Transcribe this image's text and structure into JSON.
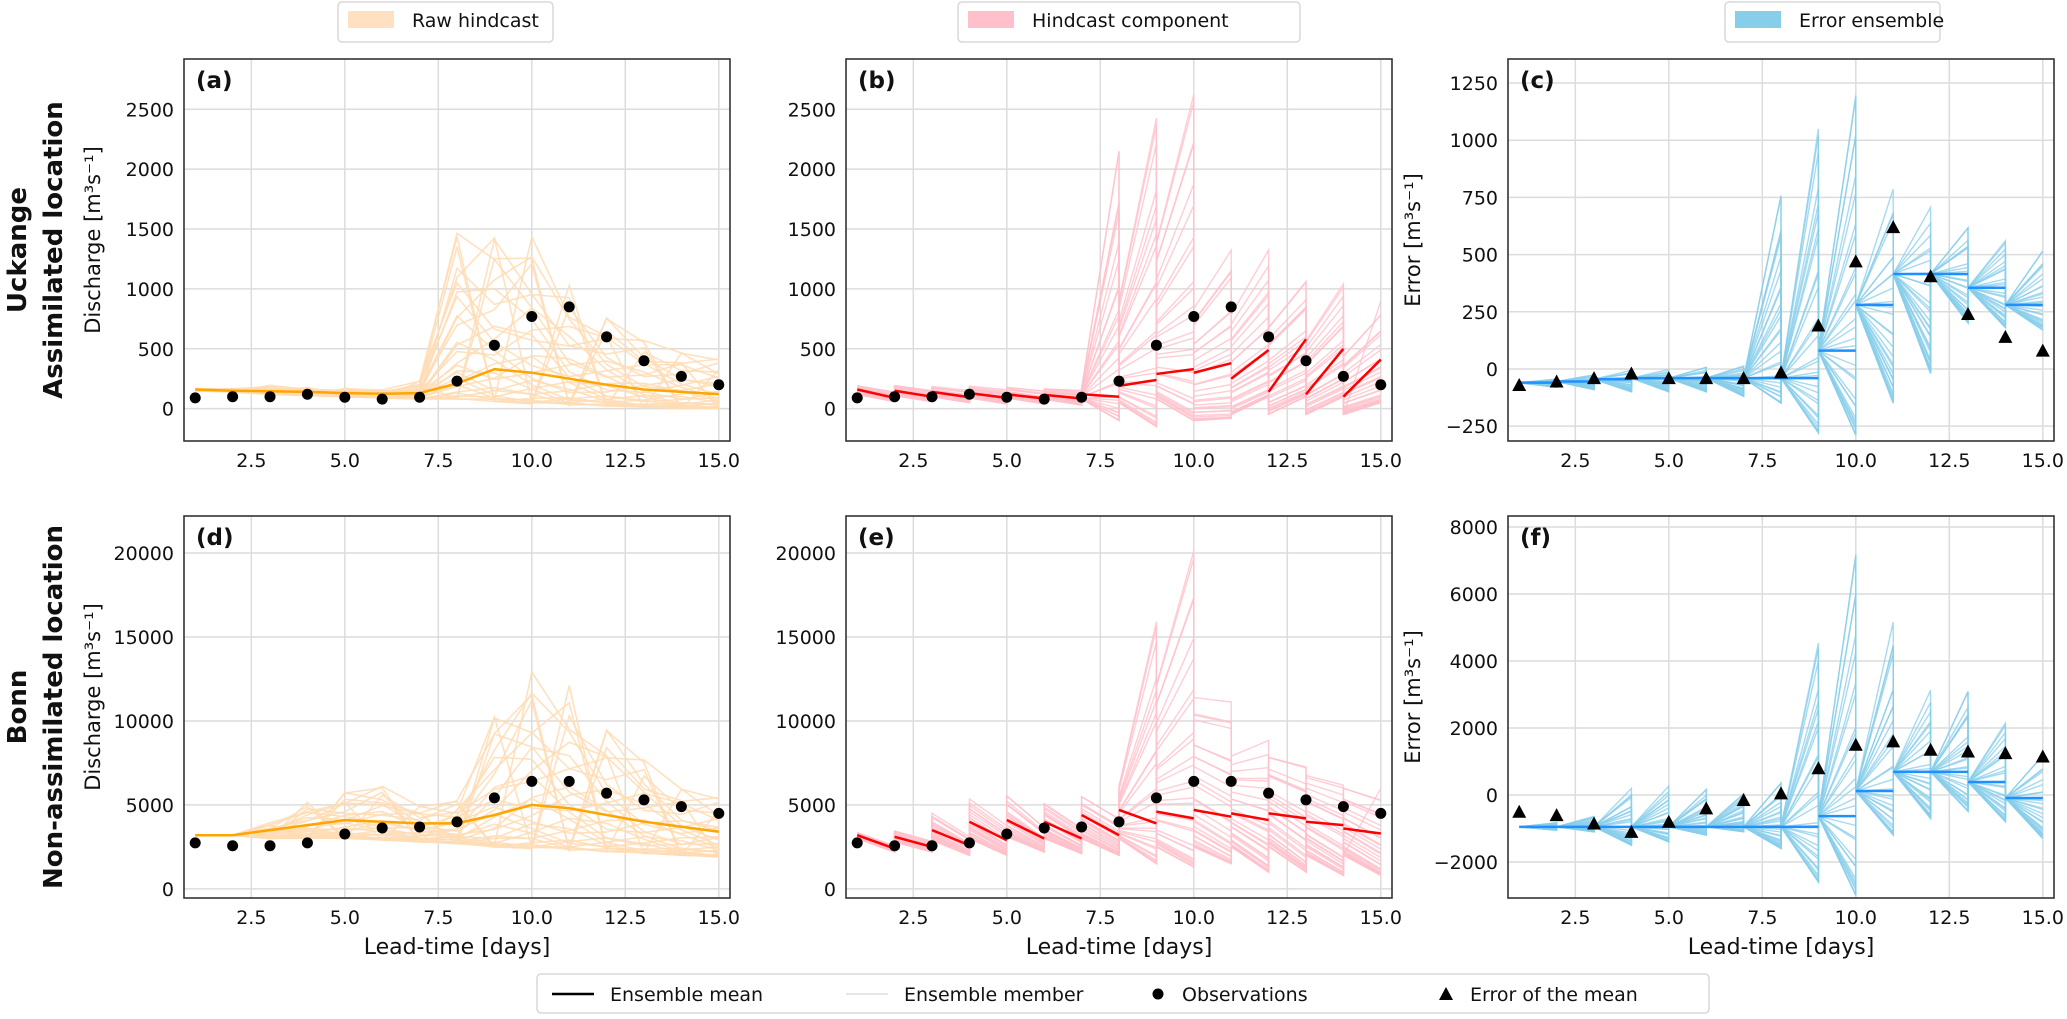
{
  "xlabel": "Lead-time [days]",
  "row_labels": [
    {
      "station": "Uckange",
      "type": "Assimilated location"
    },
    {
      "station": "Bonn",
      "type": "Non-assimilated location"
    }
  ],
  "legends_top": [
    {
      "label": "Raw hindcast",
      "color": "#ffe0c0"
    },
    {
      "label": "Hindcast component",
      "color": "#ffc0cb"
    },
    {
      "label": "Error ensemble",
      "color": "#87ceeb"
    }
  ],
  "legend_bottom": [
    {
      "label": "Ensemble mean",
      "marker": "line",
      "color": "#000000"
    },
    {
      "label": "Ensemble member",
      "marker": "line",
      "color": "#e6e6e6"
    },
    {
      "label": "Observations",
      "marker": "circle",
      "color": "#000000"
    },
    {
      "label": "Error of the mean",
      "marker": "triangle",
      "color": "#000000"
    }
  ],
  "chart_data": [
    {
      "panel": "(a)",
      "type": "line",
      "kind": "raw",
      "ylabel": "Discharge [m³s⁻¹]",
      "xlabel": "",
      "xlim": [
        0.7,
        15.3
      ],
      "ylim": [
        -270,
        2920
      ],
      "grid": true,
      "xticks": [
        2.5,
        5.0,
        7.5,
        10.0,
        12.5,
        15.0
      ],
      "xtick_labels": [
        "2.5",
        "5.0",
        "7.5",
        "10.0",
        "12.5",
        "15.0"
      ],
      "yticks": [
        0,
        500,
        1000,
        1500,
        2000,
        2500
      ],
      "ytick_labels": [
        "0",
        "500",
        "1000",
        "1500",
        "2000",
        "2500"
      ],
      "x": [
        1,
        2,
        3,
        4,
        5,
        6,
        7,
        8,
        9,
        10,
        11,
        12,
        13,
        14,
        15
      ],
      "observations": [
        90,
        100,
        100,
        120,
        95,
        80,
        95,
        230,
        530,
        770,
        850,
        600,
        400,
        270,
        200
      ],
      "ensemble_mean": [
        160,
        150,
        145,
        140,
        130,
        125,
        130,
        210,
        330,
        300,
        250,
        200,
        160,
        140,
        120
      ],
      "ensemble_min": [
        150,
        140,
        120,
        110,
        100,
        90,
        80,
        80,
        60,
        40,
        30,
        20,
        10,
        0,
        0
      ],
      "ensemble_max": [
        170,
        170,
        200,
        180,
        170,
        160,
        250,
        1650,
        1560,
        1540,
        1050,
        780,
        600,
        530,
        470
      ],
      "mean_color": "#ffa500",
      "member_color": "#ffdcb4"
    },
    {
      "panel": "(b)",
      "type": "line",
      "kind": "component",
      "ylabel": "",
      "xlabel": "",
      "xlim": [
        0.7,
        15.3
      ],
      "ylim": [
        -270,
        2920
      ],
      "grid": true,
      "xticks": [
        2.5,
        5.0,
        7.5,
        10.0,
        12.5,
        15.0
      ],
      "xtick_labels": [
        "2.5",
        "5.0",
        "7.5",
        "10.0",
        "12.5",
        "15.0"
      ],
      "yticks": [
        0,
        500,
        1000,
        1500,
        2000,
        2500
      ],
      "ytick_labels": [
        "0",
        "500",
        "1000",
        "1500",
        "2000",
        "2500"
      ],
      "x": [
        1,
        2,
        3,
        4,
        5,
        6,
        7,
        8,
        9,
        10,
        11,
        12,
        13,
        14,
        15
      ],
      "observations": [
        90,
        100,
        100,
        120,
        95,
        80,
        95,
        230,
        530,
        770,
        850,
        600,
        400,
        270,
        200
      ],
      "mean_start": [
        160,
        150,
        140,
        130,
        120,
        115,
        120,
        190,
        290,
        300,
        250,
        140,
        120,
        100
      ],
      "mean_end": [
        90,
        100,
        95,
        90,
        85,
        85,
        100,
        240,
        330,
        380,
        490,
        580,
        500,
        410
      ],
      "start_lo": [
        120,
        110,
        100,
        90,
        90,
        80,
        80,
        50,
        80,
        -100,
        -50,
        -50,
        -50,
        -50
      ],
      "start_hi": [
        200,
        200,
        190,
        190,
        180,
        170,
        180,
        1000,
        1500,
        900,
        800,
        700,
        600,
        500
      ],
      "end_lo": [
        60,
        60,
        50,
        40,
        40,
        30,
        -100,
        -150,
        -100,
        -80,
        100,
        100,
        100,
        50
      ],
      "end_hi": [
        150,
        160,
        160,
        160,
        150,
        160,
        2500,
        2800,
        2900,
        1450,
        1350,
        1100,
        1100,
        900
      ],
      "mean_color": "#ff0000",
      "member_color": "#ffc0cb"
    },
    {
      "panel": "(c)",
      "type": "line",
      "kind": "error",
      "ylabel": "Error [m³s⁻¹]",
      "xlabel": "",
      "xlim": [
        0.7,
        15.3
      ],
      "ylim": [
        -315,
        1355
      ],
      "grid": true,
      "xticks": [
        2.5,
        5.0,
        7.5,
        10.0,
        12.5,
        15.0
      ],
      "xtick_labels": [
        "2.5",
        "5.0",
        "7.5",
        "10.0",
        "12.5",
        "15.0"
      ],
      "yticks": [
        -250,
        0,
        250,
        500,
        750,
        1000,
        1250
      ],
      "ytick_labels": [
        "−250",
        "0",
        "250",
        "500",
        "750",
        "1000",
        "1250"
      ],
      "x": [
        1,
        2,
        3,
        4,
        5,
        6,
        7,
        8,
        9,
        10,
        11,
        12,
        13,
        14,
        15
      ],
      "error_of_mean": [
        -70,
        -55,
        -40,
        -20,
        -40,
        -40,
        -40,
        -15,
        190,
        470,
        620,
        405,
        240,
        140,
        80
      ],
      "mean_error": [
        -60,
        -55,
        -45,
        -40,
        -40,
        -40,
        -40,
        -40,
        80,
        280,
        415,
        415,
        355,
        280
      ],
      "end_lo": [
        -80,
        -90,
        -100,
        -100,
        -100,
        -120,
        -150,
        -280,
        -290,
        -150,
        -20,
        200,
        180,
        170
      ],
      "end_hi": [
        -40,
        -20,
        0,
        0,
        10,
        20,
        870,
        1210,
        1330,
        850,
        720,
        630,
        580,
        560
      ],
      "mean_color": "#1e90ff",
      "member_color": "#87ceeb"
    },
    {
      "panel": "(d)",
      "type": "line",
      "kind": "raw",
      "ylabel": "Discharge [m³s⁻¹]",
      "xlabel": "Lead-time [days]",
      "xlim": [
        0.7,
        15.3
      ],
      "ylim": [
        -540,
        22200
      ],
      "grid": true,
      "xticks": [
        2.5,
        5.0,
        7.5,
        10.0,
        12.5,
        15.0
      ],
      "xtick_labels": [
        "2.5",
        "5.0",
        "7.5",
        "10.0",
        "12.5",
        "15.0"
      ],
      "yticks": [
        0,
        5000,
        10000,
        15000,
        20000
      ],
      "ytick_labels": [
        "0",
        "5000",
        "10000",
        "15000",
        "20000"
      ],
      "x": [
        1,
        2,
        3,
        4,
        5,
        6,
        7,
        8,
        9,
        10,
        11,
        12,
        13,
        14,
        15
      ],
      "observations": [
        2740,
        2570,
        2570,
        2740,
        3270,
        3630,
        3690,
        3990,
        5420,
        6400,
        6400,
        5700,
        5300,
        4900,
        4500
      ],
      "ensemble_mean": [
        3200,
        3200,
        3500,
        3800,
        4100,
        4000,
        3900,
        3900,
        4400,
        5000,
        4800,
        4400,
        4000,
        3700,
        3400
      ],
      "ensemble_min": [
        3200,
        3200,
        3000,
        3000,
        3000,
        2900,
        2800,
        2700,
        2500,
        2400,
        2300,
        2200,
        2100,
        2000,
        1900
      ],
      "ensemble_max": [
        3200,
        3200,
        4000,
        5200,
        5800,
        6300,
        5200,
        5600,
        11000,
        13700,
        12300,
        9700,
        8000,
        6500,
        5900
      ],
      "mean_color": "#ffa500",
      "member_color": "#ffdcb4"
    },
    {
      "panel": "(e)",
      "type": "line",
      "kind": "component",
      "ylabel": "",
      "xlabel": "Lead-time [days]",
      "xlim": [
        0.7,
        15.3
      ],
      "ylim": [
        -540,
        22200
      ],
      "grid": true,
      "xticks": [
        2.5,
        5.0,
        7.5,
        10.0,
        12.5,
        15.0
      ],
      "xtick_labels": [
        "2.5",
        "5.0",
        "7.5",
        "10.0",
        "12.5",
        "15.0"
      ],
      "yticks": [
        0,
        5000,
        10000,
        15000,
        20000
      ],
      "ytick_labels": [
        "0",
        "5000",
        "10000",
        "15000",
        "20000"
      ],
      "x": [
        1,
        2,
        3,
        4,
        5,
        6,
        7,
        8,
        9,
        10,
        11,
        12,
        13,
        14,
        15
      ],
      "observations": [
        2740,
        2570,
        2570,
        2740,
        3270,
        3630,
        3690,
        3990,
        5420,
        6400,
        6400,
        5700,
        5300,
        4900,
        4500
      ],
      "mean_start": [
        3200,
        3100,
        3500,
        4000,
        4100,
        4000,
        4400,
        4700,
        4600,
        4700,
        4500,
        4500,
        4000,
        3600
      ],
      "mean_end": [
        2400,
        2500,
        2600,
        2900,
        3000,
        3000,
        3200,
        3900,
        4200,
        4300,
        4100,
        4200,
        3800,
        3300
      ],
      "start_lo": [
        3000,
        2800,
        2900,
        3000,
        3100,
        3000,
        3000,
        3000,
        2500,
        2500,
        2500,
        2500,
        2000,
        2000
      ],
      "start_hi": [
        3400,
        3500,
        4600,
        5400,
        5600,
        5200,
        5800,
        6500,
        13000,
        12000,
        8000,
        8000,
        7000,
        6500
      ],
      "end_lo": [
        2200,
        2200,
        2000,
        2000,
        2200,
        2100,
        2000,
        1500,
        1300,
        1500,
        1000,
        1000,
        800,
        800
      ],
      "end_hi": [
        2600,
        2900,
        3200,
        3800,
        3700,
        3700,
        4500,
        18000,
        22000,
        12000,
        9000,
        7500,
        6500,
        6000
      ],
      "mean_color": "#ff0000",
      "member_color": "#ffc0cb"
    },
    {
      "panel": "(f)",
      "type": "line",
      "kind": "error",
      "ylabel": "Error [m³s⁻¹]",
      "xlabel": "Lead-time [days]",
      "xlim": [
        0.7,
        15.3
      ],
      "ylim": [
        -3075,
        8330
      ],
      "grid": true,
      "xticks": [
        2.5,
        5.0,
        7.5,
        10.0,
        12.5,
        15.0
      ],
      "xtick_labels": [
        "2.5",
        "5.0",
        "7.5",
        "10.0",
        "12.5",
        "15.0"
      ],
      "yticks": [
        -2000,
        0,
        2000,
        4000,
        6000,
        8000
      ],
      "ytick_labels": [
        "−2000",
        "0",
        "2000",
        "4000",
        "6000",
        "8000"
      ],
      "x": [
        1,
        2,
        3,
        4,
        5,
        6,
        7,
        8,
        9,
        10,
        11,
        12,
        13,
        14,
        15
      ],
      "error_of_mean": [
        -500,
        -600,
        -850,
        -1100,
        -800,
        -400,
        -150,
        50,
        800,
        1500,
        1600,
        1350,
        1300,
        1250,
        1150
      ],
      "mean_error": [
        -950,
        -950,
        -950,
        -950,
        -950,
        -950,
        -950,
        -950,
        -630,
        120,
        690,
        690,
        390,
        -90
      ],
      "end_lo": [
        -1050,
        -1100,
        -1500,
        -1400,
        -1200,
        -1100,
        -1600,
        -2600,
        -3000,
        -1200,
        -700,
        -500,
        -800,
        -1300
      ],
      "end_hi": [
        -800,
        -600,
        300,
        300,
        200,
        100,
        600,
        5400,
        8100,
        5600,
        3200,
        3200,
        2300,
        1500
      ],
      "mean_color": "#1e90ff",
      "member_color": "#87ceeb"
    }
  ]
}
